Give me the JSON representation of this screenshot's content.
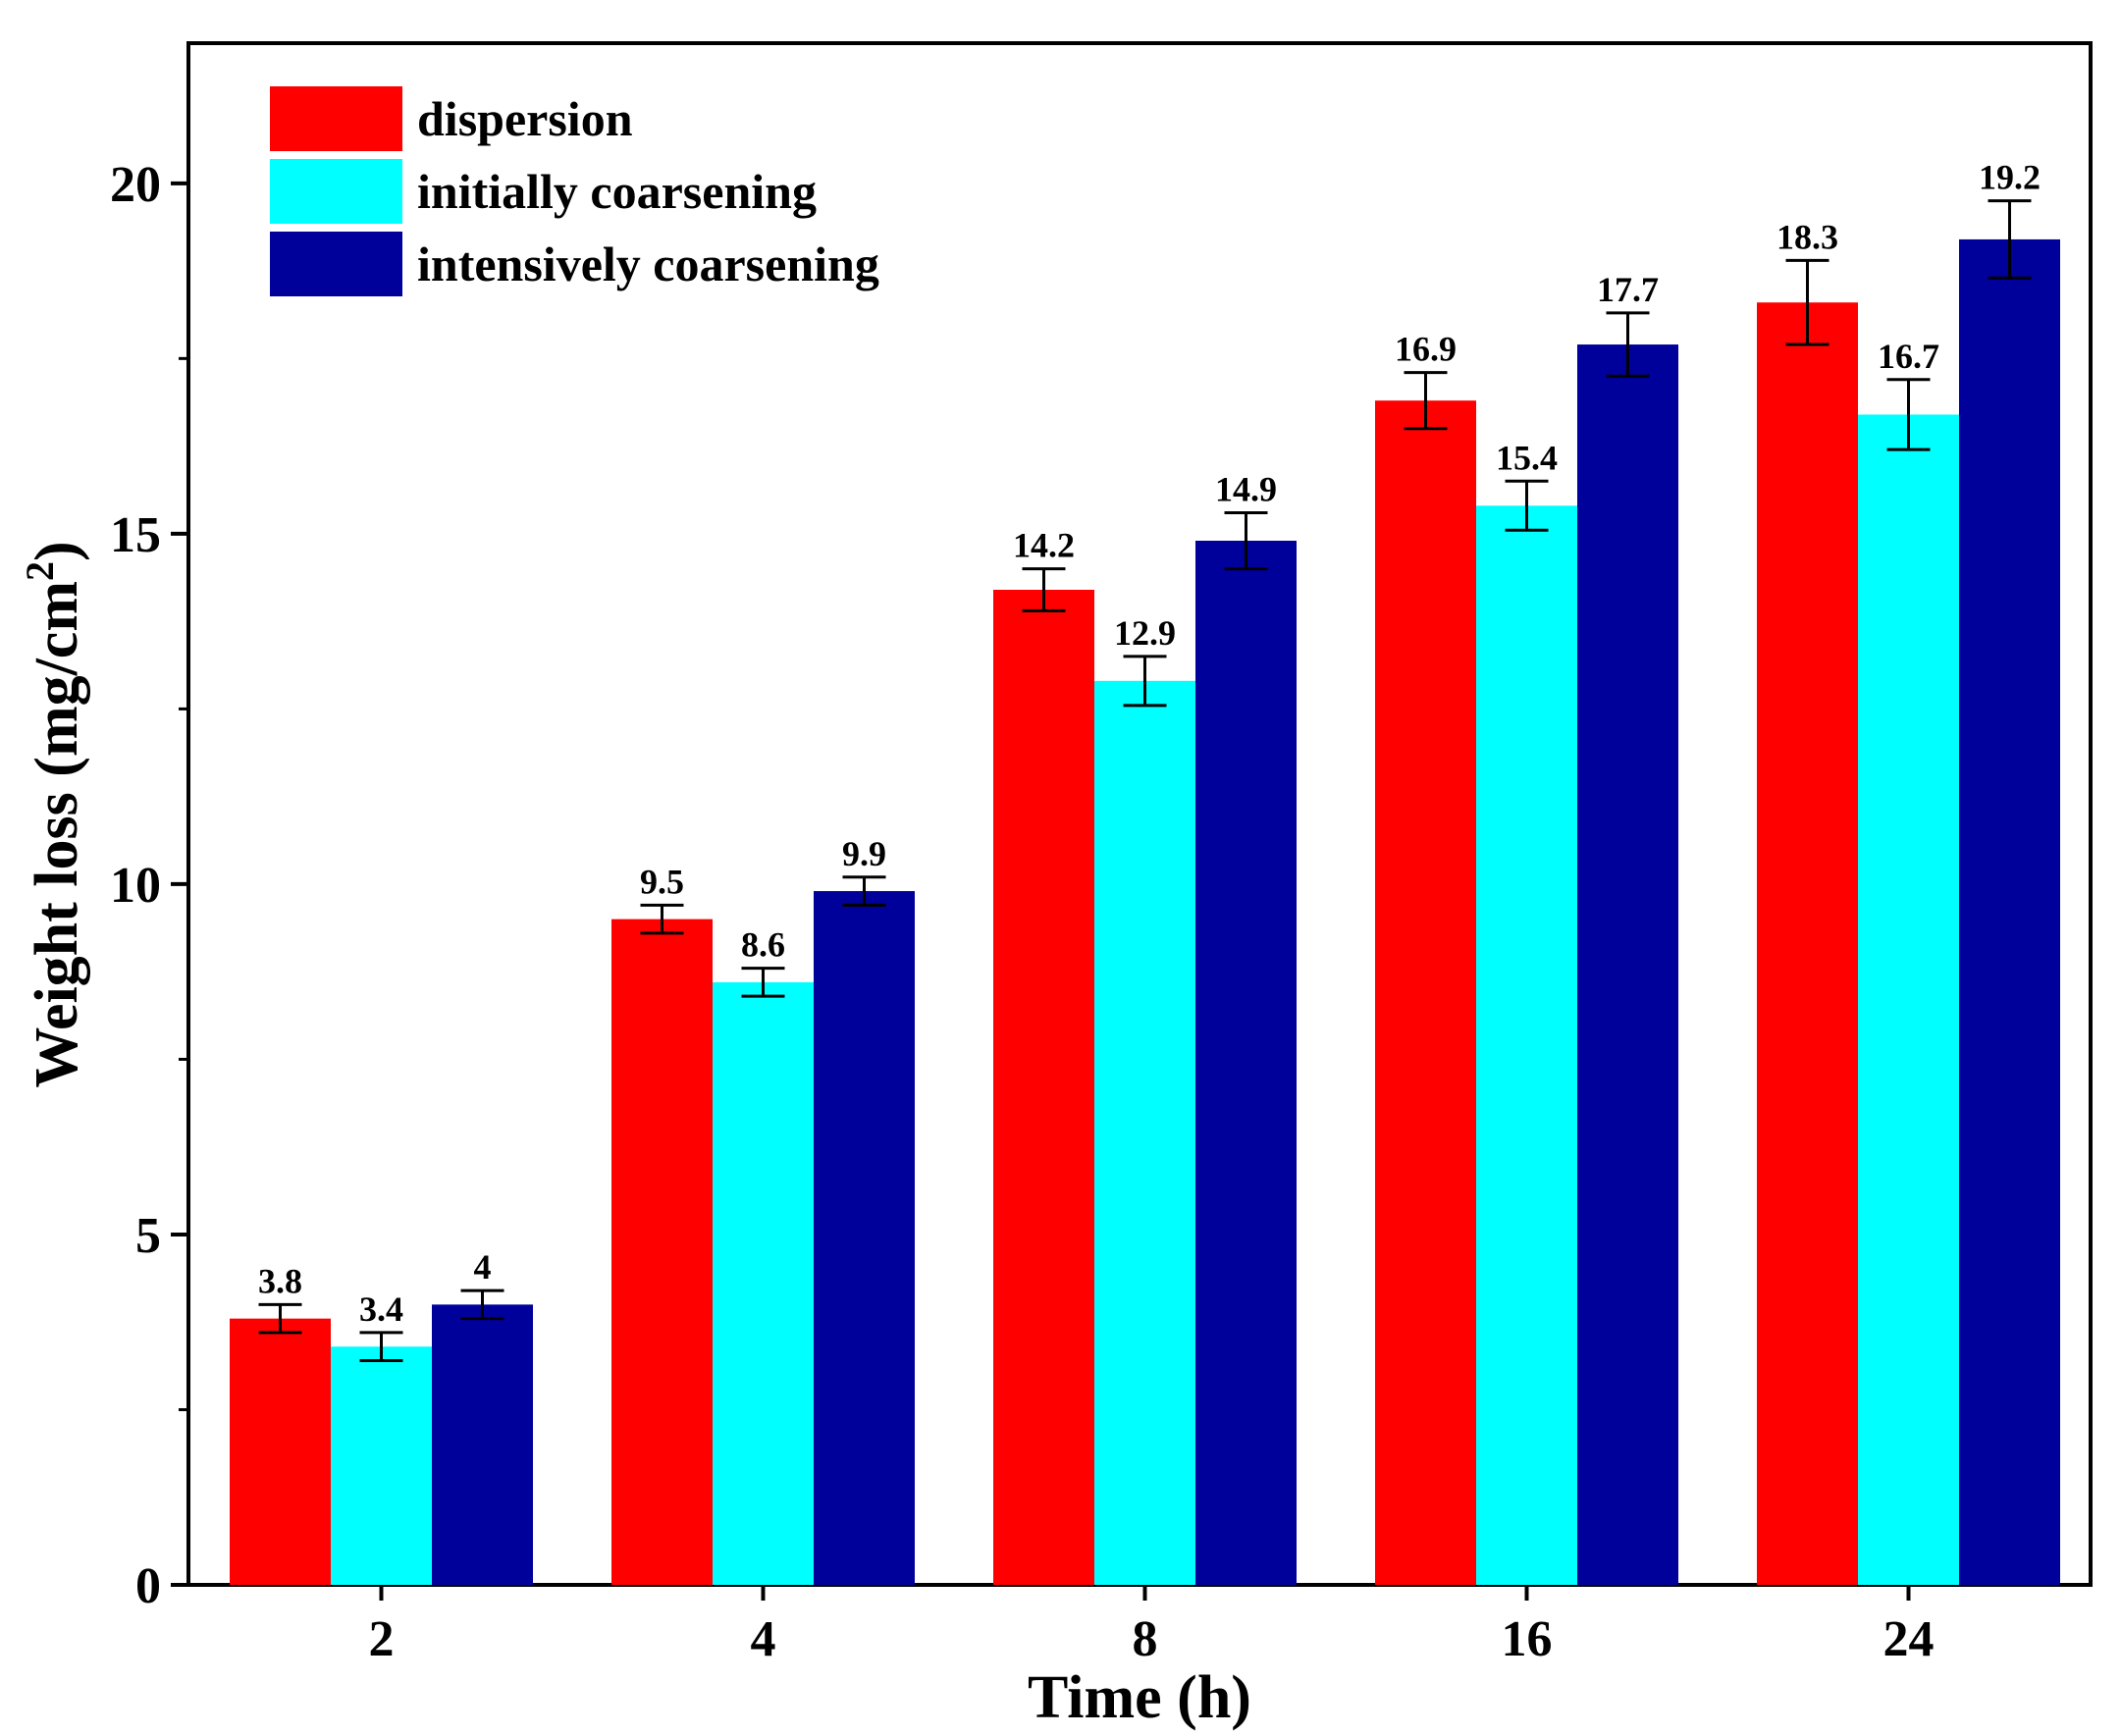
{
  "chart_data": {
    "type": "bar",
    "categories": [
      "2",
      "4",
      "8",
      "16",
      "24"
    ],
    "series": [
      {
        "name": "dispersion",
        "color": "#ff0000",
        "values": [
          3.8,
          9.5,
          14.2,
          16.9,
          18.3
        ],
        "errors": [
          0.2,
          0.2,
          0.3,
          0.4,
          0.6
        ],
        "labels": [
          "3.8",
          "9.5",
          "14.2",
          "16.9",
          "18.3"
        ]
      },
      {
        "name": "initially coarsening",
        "color": "#00ffff",
        "values": [
          3.4,
          8.6,
          12.9,
          15.4,
          16.7
        ],
        "errors": [
          0.2,
          0.2,
          0.35,
          0.35,
          0.5
        ],
        "labels": [
          "3.4",
          "8.6",
          "12.9",
          "15.4",
          "16.7"
        ]
      },
      {
        "name": "intensively coarsening",
        "color": "#00009a",
        "values": [
          4.0,
          9.9,
          14.9,
          17.7,
          19.2
        ],
        "errors": [
          0.2,
          0.2,
          0.4,
          0.45,
          0.55
        ],
        "labels": [
          "4",
          "9.9",
          "14.9",
          "17.7",
          "19.2"
        ]
      }
    ],
    "xlabel": "Time (h)",
    "ylabel": "Weight loss (mg/cm",
    "ylabel_sup": "2",
    "ylabel_close": ")",
    "ylim": [
      0,
      22
    ],
    "yticks": [
      0,
      5,
      10,
      15,
      20
    ],
    "legend_position": "top-left",
    "grid": false
  }
}
